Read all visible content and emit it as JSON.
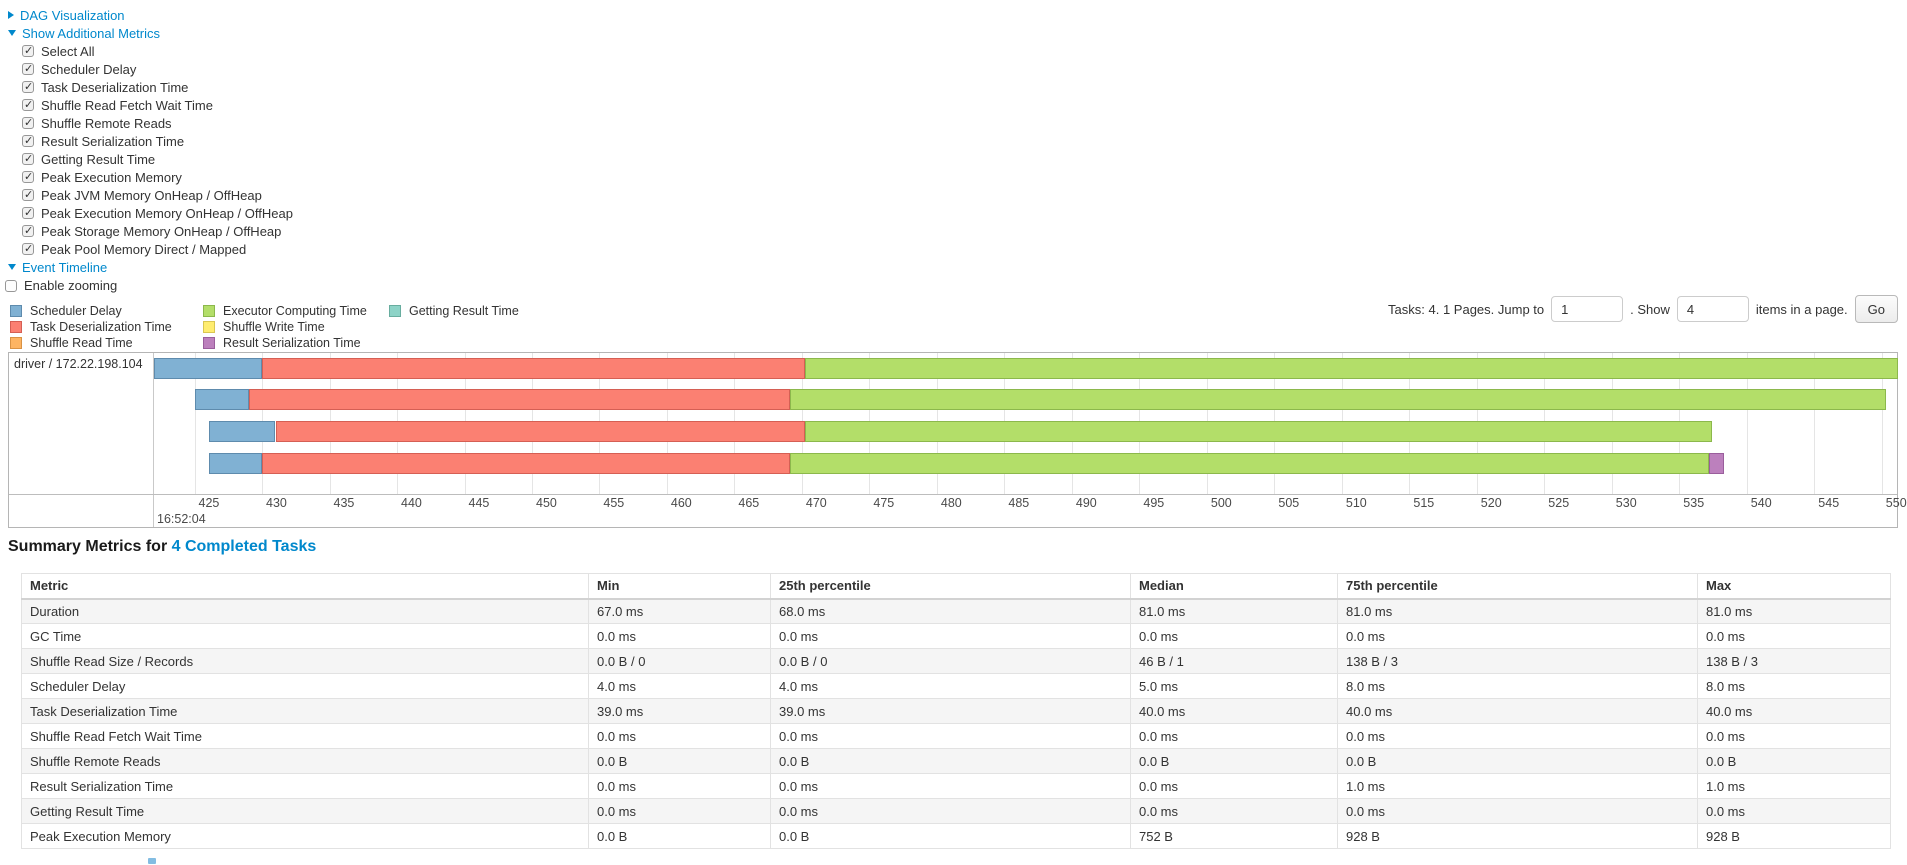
{
  "colors": {
    "link": "#0088cc",
    "page_background": "#ffffff",
    "gridline": "#e5e5e5",
    "table_stripe": "#f5f5f5"
  },
  "palette": {
    "scheduler_delay": {
      "label": "Scheduler Delay",
      "fill": "#80B1D3",
      "border": "#5E8BAD"
    },
    "task_deserialization_time": {
      "label": "Task Deserialization Time",
      "fill": "#FB8072",
      "border": "#D55F54"
    },
    "shuffle_read_time": {
      "label": "Shuffle Read Time",
      "fill": "#FDB462",
      "border": "#D99244"
    },
    "executor_computing_time": {
      "label": "Executor Computing Time",
      "fill": "#B3DE69",
      "border": "#8CB84C"
    },
    "shuffle_write_time": {
      "label": "Shuffle Write Time",
      "fill": "#FFED6F",
      "border": "#D9C752"
    },
    "result_serialization_time": {
      "label": "Result Serialization Time",
      "fill": "#BC80BD",
      "border": "#9A5E9C"
    },
    "getting_result_time": {
      "label": "Getting Result Time",
      "fill": "#8DD3C7",
      "border": "#68AD9F"
    }
  },
  "sections": {
    "dag": {
      "label": "DAG Visualization",
      "expanded": false
    },
    "metrics": {
      "label": "Show Additional Metrics",
      "expanded": true,
      "items": [
        {
          "label": "Select All",
          "checked": true
        },
        {
          "label": "Scheduler Delay",
          "checked": true
        },
        {
          "label": "Task Deserialization Time",
          "checked": true
        },
        {
          "label": "Shuffle Read Fetch Wait Time",
          "checked": true
        },
        {
          "label": "Shuffle Remote Reads",
          "checked": true
        },
        {
          "label": "Result Serialization Time",
          "checked": true
        },
        {
          "label": "Getting Result Time",
          "checked": true
        },
        {
          "label": "Peak Execution Memory",
          "checked": true
        },
        {
          "label": "Peak JVM Memory OnHeap / OffHeap",
          "checked": true
        },
        {
          "label": "Peak Execution Memory OnHeap / OffHeap",
          "checked": true
        },
        {
          "label": "Peak Storage Memory OnHeap / OffHeap",
          "checked": true
        },
        {
          "label": "Peak Pool Memory Direct / Mapped",
          "checked": true
        }
      ]
    },
    "timeline": {
      "label": "Event Timeline",
      "expanded": true,
      "enable_zooming_label": "Enable zooming",
      "enable_zooming_checked": false
    }
  },
  "legend": {
    "columns": [
      [
        "scheduler_delay",
        "task_deserialization_time",
        "shuffle_read_time"
      ],
      [
        "executor_computing_time",
        "shuffle_write_time",
        "result_serialization_time"
      ],
      [
        "getting_result_time"
      ]
    ]
  },
  "pagination": {
    "summary": "Tasks: 4. 1 Pages. Jump to",
    "jump_value": "1",
    "between": ". Show",
    "show_value": "4",
    "suffix": "items in a page.",
    "go_label": "Go"
  },
  "chart_data": {
    "type": "timeline",
    "title": "Event Timeline",
    "group_label": "driver / 172.22.198.104",
    "x_axis": {
      "unit": "ms",
      "major_label": "16:52:04",
      "domain": [
        422.0,
        551.2
      ],
      "tick_step": 5,
      "ticks": [
        425,
        430,
        435,
        440,
        445,
        450,
        455,
        460,
        465,
        470,
        475,
        480,
        485,
        490,
        495,
        500,
        505,
        510,
        515,
        520,
        525,
        530,
        535,
        540,
        545,
        550
      ],
      "last_tick_clipped": true
    },
    "tasks": [
      {
        "segments": [
          {
            "type": "scheduler_delay",
            "start": 422.0,
            "end": 430.0
          },
          {
            "type": "task_deserialization_time",
            "start": 430.0,
            "end": 470.2
          },
          {
            "type": "executor_computing_time",
            "start": 470.2,
            "end": 551.2
          }
        ]
      },
      {
        "segments": [
          {
            "type": "scheduler_delay",
            "start": 425.0,
            "end": 429.0
          },
          {
            "type": "task_deserialization_time",
            "start": 429.0,
            "end": 469.1
          },
          {
            "type": "executor_computing_time",
            "start": 469.1,
            "end": 550.3
          }
        ]
      },
      {
        "segments": [
          {
            "type": "scheduler_delay",
            "start": 426.1,
            "end": 431.0
          },
          {
            "type": "task_deserialization_time",
            "start": 431.0,
            "end": 470.2
          },
          {
            "type": "executor_computing_time",
            "start": 470.2,
            "end": 537.4
          }
        ]
      },
      {
        "segments": [
          {
            "type": "scheduler_delay",
            "start": 426.1,
            "end": 430.0
          },
          {
            "type": "task_deserialization_time",
            "start": 430.0,
            "end": 469.1
          },
          {
            "type": "executor_computing_time",
            "start": 469.1,
            "end": 537.2
          },
          {
            "type": "result_serialization_time",
            "start": 537.2,
            "end": 538.3
          }
        ]
      }
    ]
  },
  "summary": {
    "title_prefix": "Summary Metrics for",
    "title_link": "4 Completed Tasks",
    "columns": [
      "Metric",
      "Min",
      "25th percentile",
      "Median",
      "75th percentile",
      "Max"
    ],
    "rows": [
      [
        "Duration",
        "67.0 ms",
        "68.0 ms",
        "81.0 ms",
        "81.0 ms",
        "81.0 ms"
      ],
      [
        "GC Time",
        "0.0 ms",
        "0.0 ms",
        "0.0 ms",
        "0.0 ms",
        "0.0 ms"
      ],
      [
        "Shuffle Read Size / Records",
        "0.0 B / 0",
        "0.0 B / 0",
        "46 B / 1",
        "138 B / 3",
        "138 B / 3"
      ],
      [
        "Scheduler Delay",
        "4.0 ms",
        "4.0 ms",
        "5.0 ms",
        "8.0 ms",
        "8.0 ms"
      ],
      [
        "Task Deserialization Time",
        "39.0 ms",
        "39.0 ms",
        "40.0 ms",
        "40.0 ms",
        "40.0 ms"
      ],
      [
        "Shuffle Read Fetch Wait Time",
        "0.0 ms",
        "0.0 ms",
        "0.0 ms",
        "0.0 ms",
        "0.0 ms"
      ],
      [
        "Shuffle Remote Reads",
        "0.0 B",
        "0.0 B",
        "0.0 B",
        "0.0 B",
        "0.0 B"
      ],
      [
        "Result Serialization Time",
        "0.0 ms",
        "0.0 ms",
        "0.0 ms",
        "1.0 ms",
        "1.0 ms"
      ],
      [
        "Getting Result Time",
        "0.0 ms",
        "0.0 ms",
        "0.0 ms",
        "0.0 ms",
        "0.0 ms"
      ],
      [
        "Peak Execution Memory",
        "0.0 B",
        "0.0 B",
        "752 B",
        "928 B",
        "928 B"
      ]
    ]
  }
}
